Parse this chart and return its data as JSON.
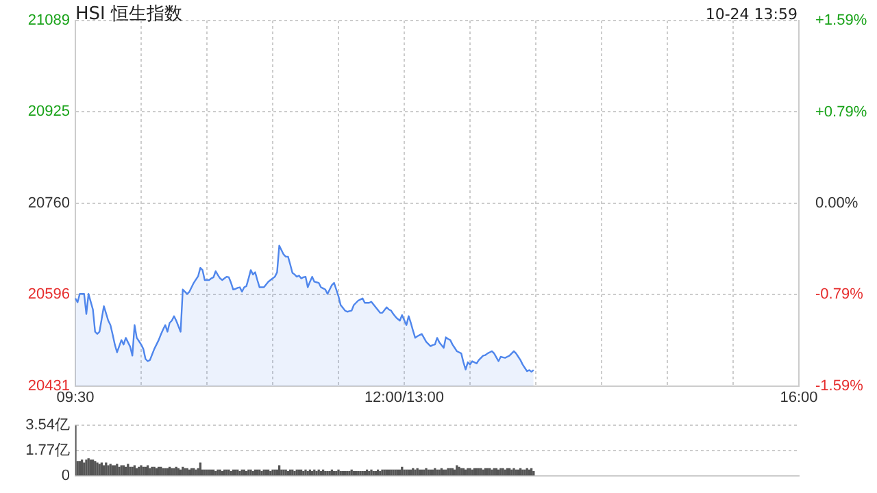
{
  "chart_data": [
    {
      "type": "area",
      "title": "HSI 恒生指数",
      "annotations": [
        "10-24 13:59"
      ],
      "categories": [
        "09:30",
        null,
        null,
        null,
        null,
        null,
        null,
        null,
        null,
        null,
        null,
        null,
        null,
        null,
        null,
        null,
        null,
        null,
        null,
        null,
        null,
        null,
        null,
        null,
        null,
        null,
        null,
        null,
        null,
        null,
        null,
        null,
        null,
        null,
        null,
        null,
        null,
        null,
        null,
        null,
        null,
        null,
        null,
        null,
        null,
        null,
        null,
        null,
        null,
        null,
        null,
        null,
        null,
        null,
        null,
        null,
        null,
        null,
        null,
        null,
        null,
        null,
        null,
        null,
        null,
        null,
        null,
        null,
        null,
        null,
        null,
        null,
        null,
        null,
        null,
        null,
        null,
        null,
        null,
        null,
        null,
        null,
        null,
        null,
        null,
        null,
        null,
        null,
        null,
        null,
        null,
        null,
        null,
        null,
        null,
        null,
        null,
        null,
        null,
        null,
        null,
        null,
        null,
        null,
        null,
        null,
        null,
        null,
        null,
        null,
        null,
        null,
        null,
        null,
        null,
        null,
        null,
        null,
        null,
        null,
        null,
        null,
        null,
        null,
        null,
        null,
        null,
        null,
        null,
        null,
        null,
        null,
        null,
        null,
        null,
        null,
        null,
        null,
        null,
        null,
        null,
        null,
        null,
        null,
        null,
        null,
        null,
        null,
        null,
        null,
        "12:00/13:00",
        null,
        null,
        null,
        null,
        null,
        null,
        null,
        null,
        null,
        null,
        null,
        null,
        null,
        null,
        null,
        null,
        null,
        null,
        null,
        null,
        null,
        null,
        null,
        null,
        null,
        null,
        null,
        null,
        null,
        null,
        null,
        null,
        null,
        null,
        null,
        null,
        null,
        null,
        null,
        null,
        null,
        null,
        null,
        null,
        null,
        null,
        null,
        null,
        null,
        null,
        null,
        null,
        null,
        null,
        null,
        null,
        null,
        null,
        null,
        null,
        null,
        null,
        null,
        null,
        null,
        null,
        null,
        null,
        null,
        null,
        null,
        null,
        null,
        null,
        null,
        null,
        null,
        null,
        null,
        null,
        null,
        null,
        null,
        null,
        null,
        null,
        null,
        null,
        null,
        null,
        null,
        null,
        null,
        null,
        null,
        null,
        null,
        null,
        null,
        null,
        null,
        null,
        null,
        null,
        null,
        null,
        null,
        null,
        null,
        null,
        null,
        null,
        null,
        null,
        null,
        null,
        null,
        null,
        null,
        null,
        null,
        null,
        null,
        null,
        null,
        null,
        null,
        null,
        null,
        null,
        null,
        null,
        null,
        null,
        null,
        null,
        null,
        null,
        null,
        null,
        null,
        null,
        null,
        null,
        null,
        null,
        null,
        null,
        null,
        null,
        null,
        null,
        null,
        null,
        null,
        null,
        null,
        null,
        null,
        null,
        null,
        null,
        null,
        null,
        null,
        null,
        null,
        null,
        null,
        null,
        null,
        null,
        null,
        null,
        null,
        null,
        null,
        null,
        null,
        "16:00"
      ],
      "series": [
        {
          "color": "#4f86ec",
          "values": [
            20589,
            20582,
            20597,
            20597,
            20597,
            20561,
            20597,
            20583,
            20569,
            20529,
            20525,
            20529,
            20552,
            20575,
            20562,
            20549,
            20541,
            20524,
            20506,
            20492,
            20503,
            20514,
            20506,
            20518,
            20510,
            20502,
            20486,
            20541,
            20518,
            20512,
            20506,
            20498,
            20480,
            20476,
            20478,
            20488,
            20498,
            20506,
            20514,
            20524,
            20533,
            20541,
            20529,
            20545,
            20549,
            20557,
            20549,
            20539,
            20529,
            20605,
            20601,
            20597,
            20601,
            20609,
            20617,
            20623,
            20629,
            20644,
            20640,
            20622,
            20622,
            20622,
            20625,
            20627,
            20638,
            20631,
            20625,
            20622,
            20625,
            20628,
            20627,
            20617,
            20605,
            20606,
            20608,
            20609,
            20601,
            20609,
            20611,
            20625,
            20640,
            20632,
            20636,
            20622,
            20609,
            20609,
            20609,
            20614,
            20619,
            20622,
            20625,
            20628,
            20636,
            20684,
            20676,
            20668,
            20664,
            20664,
            20650,
            20635,
            20632,
            20628,
            20630,
            20625,
            20627,
            20628,
            20609,
            20619,
            20628,
            20619,
            20618,
            20617,
            20609,
            20607,
            20605,
            20597,
            20605,
            20613,
            20617,
            20605,
            20593,
            20577,
            20572,
            20567,
            20565,
            20566,
            20567,
            20577,
            20581,
            20585,
            20587,
            20589,
            20581,
            20581,
            20581,
            20583,
            20578,
            20573,
            20568,
            20563,
            20563,
            20568,
            20573,
            20569,
            20567,
            20561,
            20556,
            20552,
            20549,
            20559,
            20550,
            20541,
            20557,
            20545,
            20531,
            20518,
            20521,
            20523,
            20525,
            20518,
            20511,
            20507,
            20503,
            20505,
            20506,
            20518,
            20510,
            20505,
            20500,
            20519,
            20516,
            20514,
            20506,
            20500,
            20494,
            20492,
            20490,
            20474,
            20461,
            20474,
            20470,
            20476,
            20474,
            20472,
            20478,
            20482,
            20486,
            20487,
            20490,
            20492,
            20494,
            20490,
            20483,
            20476,
            20484,
            20483,
            20482,
            20484,
            20486,
            20490,
            20494,
            20490,
            20484,
            20478,
            20470,
            20464,
            20458,
            20460,
            20457,
            20460,
            null,
            null,
            null,
            null,
            null,
            null,
            null,
            null,
            null,
            null,
            null,
            null,
            null,
            null,
            null,
            null,
            null,
            null,
            null,
            null,
            null,
            null,
            null,
            null,
            null,
            null,
            null,
            null,
            null,
            null,
            null,
            null,
            null,
            null,
            null,
            null,
            null,
            null,
            null,
            null,
            null,
            null,
            null,
            null,
            null,
            null,
            null,
            null,
            null,
            null,
            null,
            null,
            null,
            null,
            null,
            null,
            null,
            null,
            null,
            null,
            null,
            null,
            null,
            null,
            null,
            null,
            null,
            null,
            null,
            null,
            null,
            null,
            null,
            null,
            null,
            null,
            null,
            null,
            null,
            null,
            null,
            null,
            null,
            null,
            null,
            null,
            null,
            null,
            null,
            null,
            null,
            null,
            null,
            null,
            null,
            null,
            null,
            null,
            null,
            null,
            null,
            null,
            null,
            null,
            null,
            null,
            null,
            null,
            null,
            null,
            null,
            null,
            null,
            null,
            null,
            null,
            null,
            null,
            null,
            null,
            null
          ]
        }
      ],
      "ylim": [
        20431,
        21089
      ],
      "yticks": [
        20431,
        20596,
        20760,
        20925,
        21089
      ],
      "y2lim": [
        -1.59,
        1.59
      ],
      "y2ticks": [
        {
          "value": -1.59,
          "label": "-1.59%"
        },
        {
          "value": -0.79,
          "label": "-0.79%"
        },
        {
          "value": 0,
          "label": "0.00%"
        },
        {
          "value": 0.79,
          "label": "+0.79%"
        },
        {
          "value": 1.59,
          "label": "+1.59%"
        }
      ],
      "grid": true,
      "legend": false,
      "marker": "none"
    },
    {
      "type": "bar",
      "color": "#555555",
      "categories": [
        null,
        null,
        null,
        null,
        null,
        null,
        null,
        null,
        null,
        null,
        null,
        null,
        null,
        null,
        null,
        null,
        null,
        null,
        null,
        null,
        null,
        null,
        null,
        null,
        null,
        null,
        null,
        null,
        null,
        null,
        null,
        null,
        null,
        null,
        null,
        null,
        null,
        null,
        null,
        null,
        null,
        null,
        null,
        null,
        null,
        null,
        null,
        null,
        null,
        null,
        null,
        null,
        null,
        null,
        null,
        null,
        null,
        null,
        null,
        null,
        null,
        null,
        null,
        null,
        null,
        null,
        null,
        null,
        null,
        null,
        null,
        null,
        null,
        null,
        null,
        null,
        null,
        null,
        null,
        null,
        null,
        null,
        null,
        null,
        null,
        null,
        null,
        null,
        null,
        null,
        null,
        null,
        null,
        null,
        null,
        null,
        null,
        null,
        null,
        null,
        null,
        null,
        null,
        null,
        null,
        null,
        null,
        null,
        null,
        null,
        null,
        null,
        null,
        null,
        null,
        null,
        null,
        null,
        null,
        null,
        null,
        null,
        null,
        null,
        null,
        null,
        null,
        null,
        null,
        null,
        null,
        null,
        null,
        null,
        null,
        null,
        null,
        null,
        null,
        null,
        null,
        null,
        null,
        null,
        null,
        null,
        null,
        null,
        null,
        null,
        null,
        null,
        null,
        null,
        null,
        null,
        null,
        null,
        null,
        null,
        null,
        null,
        null,
        null,
        null,
        null,
        null,
        null,
        null,
        null,
        null,
        null,
        null,
        null,
        null,
        null,
        null,
        null,
        null,
        null,
        null,
        null,
        null,
        null,
        null,
        null,
        null,
        null,
        null,
        null,
        null,
        null,
        null,
        null,
        null,
        null,
        null,
        null,
        null,
        null,
        null,
        null,
        null,
        null,
        null,
        null,
        null,
        null,
        null,
        null,
        null,
        null,
        null,
        null,
        null,
        null,
        null,
        null,
        null,
        null,
        null,
        null,
        null,
        null,
        null,
        null,
        null,
        null,
        null,
        null,
        null,
        null,
        null,
        null,
        null,
        null,
        null,
        null,
        null,
        null,
        null,
        null,
        null,
        null,
        null,
        null,
        null,
        null,
        null,
        null,
        null,
        null,
        null,
        null,
        null,
        null,
        null,
        null,
        null,
        null,
        null,
        null,
        null,
        null,
        null,
        null,
        null,
        null,
        null,
        null,
        null,
        null,
        null,
        null,
        null,
        null,
        null,
        null,
        null,
        null,
        null,
        null,
        null,
        null,
        null,
        null,
        null,
        null,
        null,
        null,
        null,
        null,
        null,
        null,
        null,
        null,
        null,
        null,
        null,
        null,
        null,
        null,
        null,
        null,
        null,
        null,
        null,
        null,
        null,
        null,
        null,
        null,
        null,
        null,
        null,
        null,
        null,
        null,
        null,
        null,
        null,
        null,
        null,
        null,
        null,
        null,
        null,
        null,
        null,
        null,
        null
      ],
      "values": [
        3.5,
        1.0,
        1.0,
        1.1,
        0.9,
        1.1,
        1.2,
        1.1,
        1.1,
        1.0,
        0.9,
        0.8,
        0.9,
        0.7,
        0.9,
        0.7,
        0.8,
        0.7,
        0.7,
        0.8,
        0.6,
        0.7,
        0.7,
        0.6,
        0.8,
        0.6,
        0.6,
        0.7,
        0.5,
        0.6,
        0.7,
        0.6,
        0.6,
        0.7,
        0.5,
        0.6,
        0.6,
        0.5,
        0.6,
        0.6,
        0.5,
        0.5,
        0.5,
        0.6,
        0.5,
        0.5,
        0.6,
        0.5,
        0.4,
        0.6,
        0.5,
        0.5,
        0.4,
        0.5,
        0.5,
        0.4,
        0.5,
        0.9,
        0.4,
        0.4,
        0.4,
        0.4,
        0.4,
        0.4,
        0.3,
        0.4,
        0.4,
        0.3,
        0.4,
        0.4,
        0.4,
        0.3,
        0.4,
        0.4,
        0.4,
        0.3,
        0.4,
        0.4,
        0.3,
        0.4,
        0.4,
        0.3,
        0.4,
        0.4,
        0.4,
        0.3,
        0.4,
        0.4,
        0.4,
        0.3,
        0.4,
        0.4,
        0.4,
        0.7,
        0.4,
        0.4,
        0.4,
        0.3,
        0.4,
        0.4,
        0.3,
        0.4,
        0.4,
        0.4,
        0.3,
        0.4,
        0.3,
        0.4,
        0.3,
        0.4,
        0.3,
        0.4,
        0.3,
        0.4,
        0.3,
        0.3,
        0.3,
        0.4,
        0.3,
        0.3,
        0.4,
        0.3,
        0.3,
        0.3,
        0.3,
        0.3,
        0.4,
        0.3,
        0.3,
        0.3,
        0.3,
        0.3,
        0.3,
        0.4,
        0.3,
        0.4,
        0.3,
        0.3,
        0.4,
        0.3,
        0.4,
        0.4,
        0.4,
        0.4,
        0.4,
        0.4,
        0.4,
        0.4,
        0.4,
        0.6,
        0.4,
        0.4,
        0.4,
        0.4,
        0.5,
        0.4,
        0.5,
        0.4,
        0.4,
        0.4,
        0.5,
        0.4,
        0.4,
        0.4,
        0.5,
        0.4,
        0.4,
        0.5,
        0.4,
        0.4,
        0.5,
        0.5,
        0.5,
        0.4,
        0.7,
        0.6,
        0.5,
        0.5,
        0.4,
        0.5,
        0.5,
        0.4,
        0.5,
        0.5,
        0.5,
        0.5,
        0.4,
        0.5,
        0.5,
        0.5,
        0.4,
        0.5,
        0.5,
        0.4,
        0.5,
        0.5,
        0.4,
        0.5,
        0.5,
        0.4,
        0.5,
        0.4,
        0.4,
        0.5,
        0.4,
        0.4,
        0.5,
        0.4,
        0.5,
        0.3,
        null,
        null,
        null,
        null,
        null,
        null,
        null,
        null,
        null,
        null,
        null,
        null,
        null,
        null,
        null,
        null,
        null,
        null,
        null,
        null,
        null,
        null,
        null,
        null,
        null,
        null,
        null,
        null,
        null,
        null,
        null,
        null,
        null,
        null,
        null,
        null,
        null,
        null,
        null,
        null,
        null,
        null,
        null,
        null,
        null,
        null,
        null,
        null,
        null,
        null,
        null,
        null,
        null,
        null,
        null,
        null,
        null,
        null,
        null,
        null,
        null,
        null,
        null,
        null,
        null,
        null,
        null,
        null,
        null,
        null,
        null,
        null,
        null,
        null,
        null,
        null,
        null,
        null,
        null,
        null,
        null,
        null,
        null,
        null,
        null,
        null,
        null,
        null,
        null,
        null,
        null,
        null,
        null,
        null,
        null,
        null,
        null,
        null,
        null,
        null,
        null,
        null,
        null,
        null,
        null,
        null,
        null,
        null,
        null,
        null,
        null,
        null,
        null,
        null,
        null,
        null,
        null,
        null,
        null,
        null,
        null
      ],
      "ylim": [
        0,
        3.54
      ],
      "yticks": [
        {
          "value": 0,
          "label": "0"
        },
        {
          "value": 1.77,
          "label": "1.77亿"
        },
        {
          "value": 3.54,
          "label": "3.54亿"
        }
      ],
      "tick_labels": "y",
      "grid": "y",
      "legend": false
    }
  ]
}
